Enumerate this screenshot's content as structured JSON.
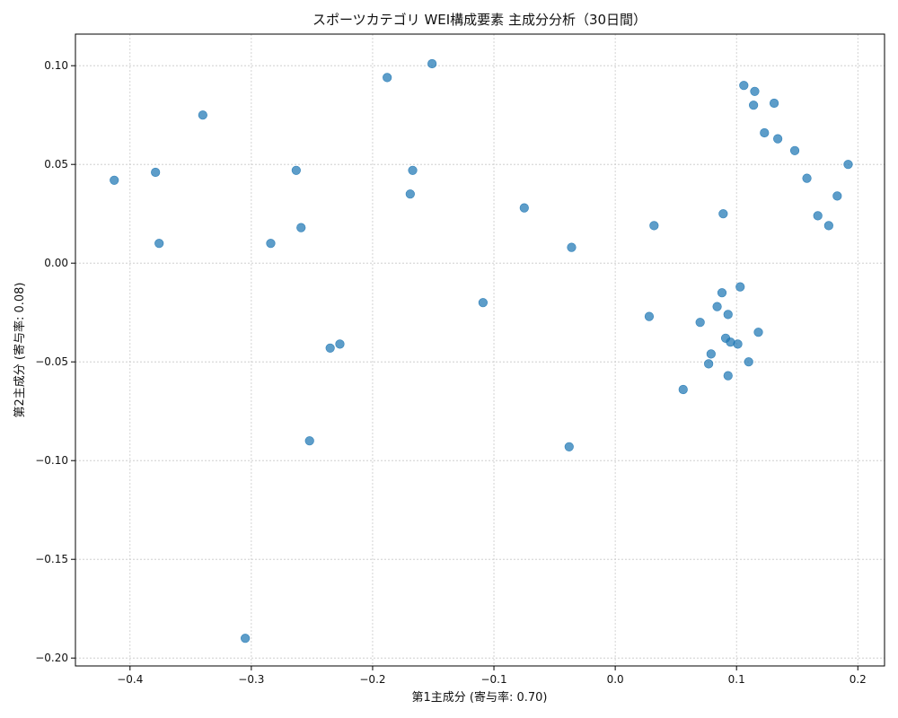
{
  "chart_data": {
    "type": "scatter",
    "title": "スポーツカテゴリ WEI構成要素 主成分分析（30日間）",
    "xlabel": "第1主成分 (寄与率: 0.70)",
    "ylabel": "第2主成分 (寄与率: 0.08)",
    "xlim": [
      -0.445,
      0.222
    ],
    "ylim": [
      -0.204,
      0.116
    ],
    "xticks": [
      -0.4,
      -0.3,
      -0.2,
      -0.1,
      0.0,
      0.1,
      0.2
    ],
    "xtick_labels": [
      "−0.4",
      "−0.3",
      "−0.2",
      "−0.1",
      "0.0",
      "0.1",
      "0.2"
    ],
    "yticks": [
      -0.2,
      -0.15,
      -0.1,
      -0.05,
      0.0,
      0.05,
      0.1
    ],
    "ytick_labels": [
      "−0.20",
      "−0.15",
      "−0.10",
      "−0.05",
      "0.00",
      "0.05",
      "0.10"
    ],
    "grid": true,
    "color": "#1f77b4",
    "points": [
      {
        "x": -0.413,
        "y": 0.042
      },
      {
        "x": -0.379,
        "y": 0.046
      },
      {
        "x": -0.376,
        "y": 0.01
      },
      {
        "x": -0.34,
        "y": 0.075
      },
      {
        "x": -0.305,
        "y": -0.19
      },
      {
        "x": -0.284,
        "y": 0.01
      },
      {
        "x": -0.263,
        "y": 0.047
      },
      {
        "x": -0.259,
        "y": 0.018
      },
      {
        "x": -0.252,
        "y": -0.09
      },
      {
        "x": -0.235,
        "y": -0.043
      },
      {
        "x": -0.227,
        "y": -0.041
      },
      {
        "x": -0.188,
        "y": 0.094
      },
      {
        "x": -0.169,
        "y": 0.035
      },
      {
        "x": -0.167,
        "y": 0.047
      },
      {
        "x": -0.151,
        "y": 0.101
      },
      {
        "x": -0.109,
        "y": -0.02
      },
      {
        "x": -0.075,
        "y": 0.028
      },
      {
        "x": -0.038,
        "y": -0.093
      },
      {
        "x": -0.036,
        "y": 0.008
      },
      {
        "x": 0.028,
        "y": -0.027
      },
      {
        "x": 0.032,
        "y": 0.019
      },
      {
        "x": 0.056,
        "y": -0.064
      },
      {
        "x": 0.07,
        "y": -0.03
      },
      {
        "x": 0.077,
        "y": -0.051
      },
      {
        "x": 0.079,
        "y": -0.046
      },
      {
        "x": 0.084,
        "y": -0.022
      },
      {
        "x": 0.088,
        "y": -0.015
      },
      {
        "x": 0.089,
        "y": 0.025
      },
      {
        "x": 0.091,
        "y": -0.038
      },
      {
        "x": 0.093,
        "y": -0.026
      },
      {
        "x": 0.093,
        "y": -0.057
      },
      {
        "x": 0.095,
        "y": -0.04
      },
      {
        "x": 0.101,
        "y": -0.041
      },
      {
        "x": 0.103,
        "y": -0.012
      },
      {
        "x": 0.106,
        "y": 0.09
      },
      {
        "x": 0.11,
        "y": -0.05
      },
      {
        "x": 0.114,
        "y": 0.08
      },
      {
        "x": 0.115,
        "y": 0.087
      },
      {
        "x": 0.118,
        "y": -0.035
      },
      {
        "x": 0.123,
        "y": 0.066
      },
      {
        "x": 0.131,
        "y": 0.081
      },
      {
        "x": 0.134,
        "y": 0.063
      },
      {
        "x": 0.148,
        "y": 0.057
      },
      {
        "x": 0.158,
        "y": 0.043
      },
      {
        "x": 0.167,
        "y": 0.024
      },
      {
        "x": 0.176,
        "y": 0.019
      },
      {
        "x": 0.183,
        "y": 0.034
      },
      {
        "x": 0.192,
        "y": 0.05
      }
    ]
  }
}
